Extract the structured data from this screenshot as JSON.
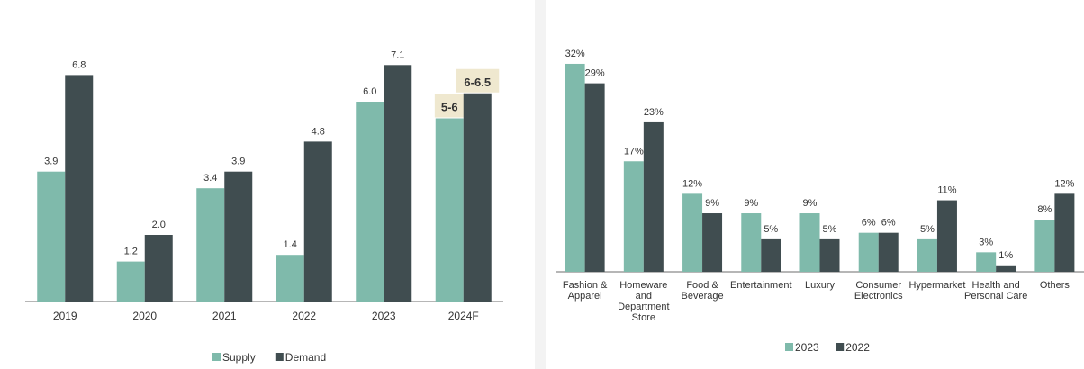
{
  "colors": {
    "series_a": "#7fbaab",
    "series_b": "#404d50",
    "highlight_bg": "#efe8cf",
    "axis": "#6e6e6e",
    "text": "#333333"
  },
  "chart_data": [
    {
      "type": "bar",
      "categories": [
        "2019",
        "2020",
        "2021",
        "2022",
        "2023",
        "2024F"
      ],
      "series": [
        {
          "name": "Supply",
          "values": [
            3.9,
            1.2,
            3.4,
            1.4,
            6.0,
            5.5
          ],
          "labels": [
            "3.9",
            "1.2",
            "3.4",
            "1.4",
            "6.0",
            "5-6"
          ]
        },
        {
          "name": "Demand",
          "values": [
            6.8,
            2.0,
            3.9,
            4.8,
            7.1,
            6.25
          ],
          "labels": [
            "6.8",
            "2.0",
            "3.9",
            "4.8",
            "7.1",
            "6-6.5"
          ]
        }
      ],
      "highlighted_category": "2024F",
      "title": "",
      "xlabel": "",
      "ylabel": "",
      "ylim": [
        0,
        8
      ],
      "grid": false,
      "legend": "bottom-center"
    },
    {
      "type": "bar",
      "categories": [
        [
          "Fashion &",
          "Apparel"
        ],
        [
          "Homeware",
          "and",
          "Department",
          "Store"
        ],
        [
          "Food &",
          "Beverage"
        ],
        [
          "Entertainment"
        ],
        [
          "Luxury"
        ],
        [
          "Consumer",
          "Electronics"
        ],
        [
          "Hypermarket"
        ],
        [
          "Health and",
          "Personal Care"
        ],
        [
          "Others"
        ]
      ],
      "series": [
        {
          "name": "2023",
          "values": [
            32,
            17,
            12,
            9,
            9,
            6,
            5,
            3,
            8
          ],
          "labels": [
            "32%",
            "17%",
            "12%",
            "9%",
            "9%",
            "6%",
            "5%",
            "3%",
            "8%"
          ]
        },
        {
          "name": "2022",
          "values": [
            29,
            23,
            9,
            5,
            5,
            6,
            11,
            1,
            12
          ],
          "labels": [
            "29%",
            "23%",
            "9%",
            "5%",
            "5%",
            "6%",
            "11%",
            "1%",
            "12%"
          ]
        }
      ],
      "title": "",
      "xlabel": "",
      "ylabel": "",
      "ylim": [
        0,
        34
      ],
      "grid": false,
      "legend": "bottom-center"
    }
  ]
}
